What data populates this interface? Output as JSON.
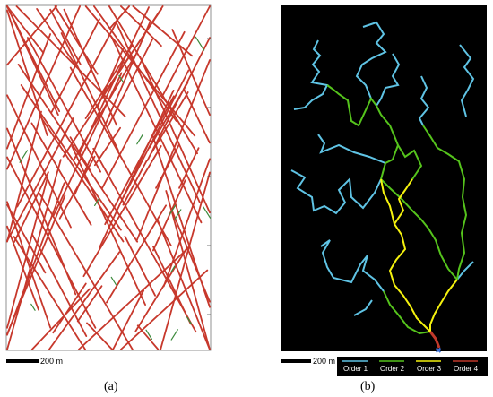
{
  "figure": {
    "panel_a_label": "(a)",
    "panel_b_label": "(b)",
    "scale_a_text": "200 m",
    "scale_b_text": "200 m"
  },
  "legend": {
    "items": [
      {
        "label": "Order 1",
        "color": "#5fc3e4"
      },
      {
        "label": "Order 2",
        "color": "#55c31c"
      },
      {
        "label": "Order 3",
        "color": "#f5f20e"
      },
      {
        "label": "Order 4",
        "color": "#c0392b"
      }
    ]
  },
  "colors": {
    "fracture_red": "#c7382c",
    "fracture_green": "#3c8a3c",
    "panel_b_background": "#000000",
    "outlet_marker": "#3a6fd6"
  }
}
